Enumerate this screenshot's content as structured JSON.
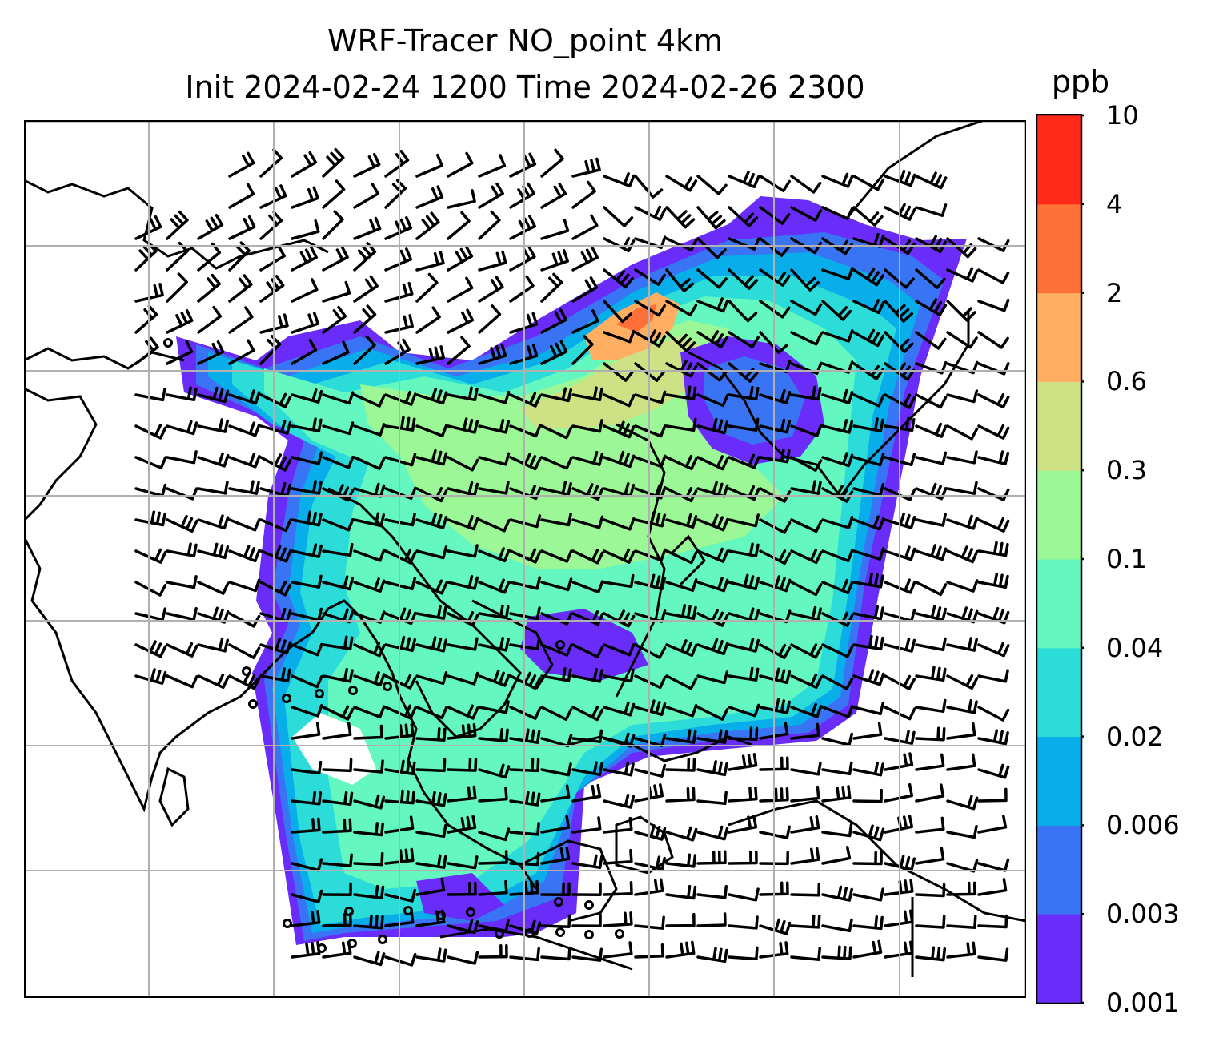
{
  "title": {
    "line1": "WRF-Tracer NO_point 4km",
    "line2": "Init 2024-02-24 1200 Time 2024-02-26 2300"
  },
  "colorbar": {
    "unit": "ppb",
    "levels": [
      "0.001",
      "0.003",
      "0.006",
      "0.02",
      "0.04",
      "0.1",
      "0.3",
      "0.6",
      "2",
      "4",
      "10"
    ],
    "colors": [
      "#6a2cf8",
      "#3874f4",
      "#08aee9",
      "#2cdcd8",
      "#64f8c0",
      "#9cf896",
      "#cfe185",
      "#ffae62",
      "#ff7038",
      "#ff2a17"
    ]
  },
  "map": {
    "grid": "on",
    "gridlines_x": 7,
    "gridlines_y": 6,
    "features": [
      "coastlines",
      "country-borders",
      "wind-barbs",
      "calm-wind-circles",
      "tracer-concentration-field"
    ]
  }
}
